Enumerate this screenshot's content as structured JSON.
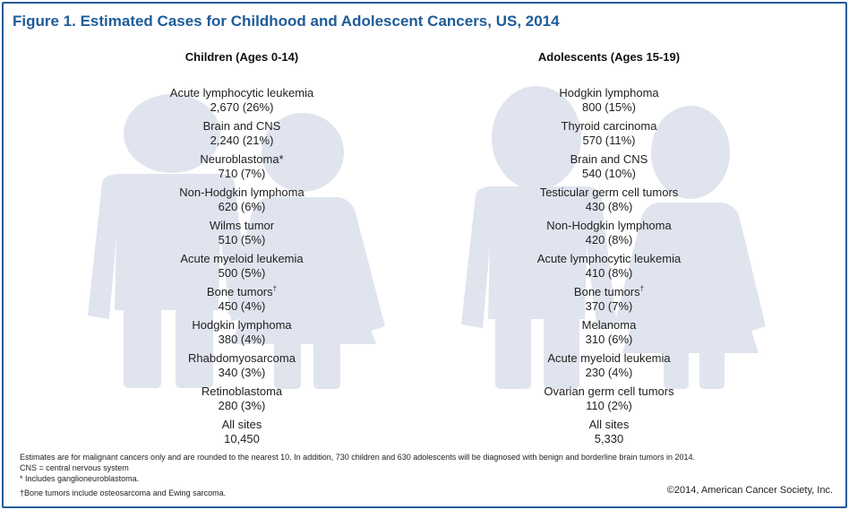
{
  "title": "Figure 1. Estimated Cases for Childhood and Adolescent Cancers, US, 2014",
  "chart_data": [
    {
      "type": "table",
      "title": "Children (Ages 0-14)",
      "entries": [
        {
          "name": "Acute lymphocytic leukemia",
          "marker": "",
          "cases": 2670,
          "percent": 26,
          "value_label": "2,670 (26%)"
        },
        {
          "name": "Brain and CNS",
          "marker": "",
          "cases": 2240,
          "percent": 21,
          "value_label": "2,240 (21%)"
        },
        {
          "name": "Neuroblastoma",
          "marker": "*",
          "cases": 710,
          "percent": 7,
          "value_label": "710 (7%)"
        },
        {
          "name": "Non-Hodgkin lymphoma",
          "marker": "",
          "cases": 620,
          "percent": 6,
          "value_label": "620 (6%)"
        },
        {
          "name": "Wilms tumor",
          "marker": "",
          "cases": 510,
          "percent": 5,
          "value_label": "510 (5%)"
        },
        {
          "name": "Acute myeloid leukemia",
          "marker": "",
          "cases": 500,
          "percent": 5,
          "value_label": "500 (5%)"
        },
        {
          "name": "Bone tumors",
          "marker": "†",
          "cases": 450,
          "percent": 4,
          "value_label": "450 (4%)"
        },
        {
          "name": "Hodgkin lymphoma",
          "marker": "",
          "cases": 380,
          "percent": 4,
          "value_label": "380 (4%)"
        },
        {
          "name": "Rhabdomyosarcoma",
          "marker": "",
          "cases": 340,
          "percent": 3,
          "value_label": "340 (3%)"
        },
        {
          "name": "Retinoblastoma",
          "marker": "",
          "cases": 280,
          "percent": 3,
          "value_label": "280 (3%)"
        },
        {
          "name": "All sites",
          "marker": "",
          "cases": 10450,
          "percent": null,
          "value_label": "10,450"
        }
      ]
    },
    {
      "type": "table",
      "title": "Adolescents (Ages 15-19)",
      "entries": [
        {
          "name": "Hodgkin lymphoma",
          "marker": "",
          "cases": 800,
          "percent": 15,
          "value_label": "800 (15%)"
        },
        {
          "name": "Thyroid carcinoma",
          "marker": "",
          "cases": 570,
          "percent": 11,
          "value_label": "570 (11%)"
        },
        {
          "name": "Brain and CNS",
          "marker": "",
          "cases": 540,
          "percent": 10,
          "value_label": "540 (10%)"
        },
        {
          "name": "Testicular germ cell tumors",
          "marker": "",
          "cases": 430,
          "percent": 8,
          "value_label": "430 (8%)"
        },
        {
          "name": "Non-Hodgkin lymphoma",
          "marker": "",
          "cases": 420,
          "percent": 8,
          "value_label": "420 (8%)"
        },
        {
          "name": "Acute lymphocytic leukemia",
          "marker": "",
          "cases": 410,
          "percent": 8,
          "value_label": "410 (8%)"
        },
        {
          "name": "Bone tumors",
          "marker": "†",
          "cases": 370,
          "percent": 7,
          "value_label": "370 (7%)"
        },
        {
          "name": "Melanoma",
          "marker": "",
          "cases": 310,
          "percent": 6,
          "value_label": "310 (6%)"
        },
        {
          "name": "Acute myeloid leukemia",
          "marker": "",
          "cases": 230,
          "percent": 4,
          "value_label": "230 (4%)"
        },
        {
          "name": "Ovarian germ cell tumors",
          "marker": "",
          "cases": 110,
          "percent": 2,
          "value_label": "110 (2%)"
        },
        {
          "name": "All sites",
          "marker": "",
          "cases": 5330,
          "percent": null,
          "value_label": "5,330"
        }
      ]
    }
  ],
  "footnotes": {
    "line1": "Estimates are for malignant cancers only and are rounded to the nearest 10. In addition, 730 children and 630 adolescents will be diagnosed with benign and borderline brain tumors in 2014.",
    "line2": "CNS = central nervous system",
    "line3": "* Includes ganglioneuroblastoma.",
    "line4": "†Bone tumors include osteosarcoma and Ewing sarcoma."
  },
  "copyright": "©2014, American Cancer Society, Inc.",
  "colors": {
    "title": "#1f5c99",
    "border": "#1f5c99",
    "silhouette": "#dfe4ee",
    "text": "#222222"
  },
  "icons": {
    "boy": "boy-silhouette-icon",
    "girl": "girl-silhouette-icon"
  }
}
